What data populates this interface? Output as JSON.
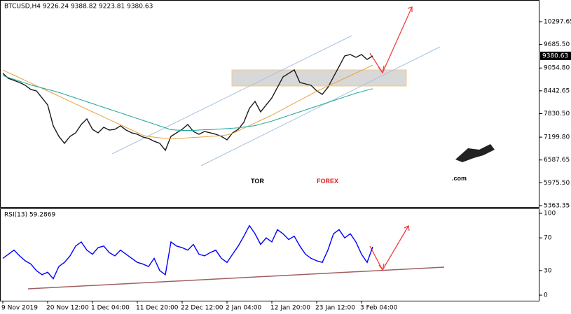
{
  "chart_data": [
    {
      "type": "line",
      "title": "BTCUSD,H4  9226.24 9388.82 9223.81 9380.63",
      "categories": [
        "9 Nov 2019",
        null,
        null,
        null,
        null,
        null,
        null,
        null,
        "20 Nov 12:00",
        null,
        null,
        null,
        null,
        null,
        null,
        null,
        "1 Dec 04:00",
        null,
        null,
        null,
        null,
        null,
        null,
        null,
        "11 Dec 20:00",
        null,
        null,
        null,
        null,
        null,
        null,
        null,
        "22 Dec 12:00",
        null,
        null,
        null,
        null,
        null,
        null,
        null,
        "2 Jan 04:00",
        null,
        null,
        null,
        null,
        null,
        null,
        null,
        "12 Jan 20:00",
        null,
        null,
        null,
        null,
        null,
        null,
        null,
        "23 Jan 12:00",
        null,
        null,
        null,
        null,
        null,
        null,
        null,
        "3 Feb 04:00",
        null,
        null
      ],
      "series": [
        {
          "color": "#1a1a1a",
          "values": [
            8910,
            8778,
            8722,
            8666,
            8591,
            8478,
            8441,
            8253,
            8066,
            7503,
            7221,
            7034,
            7221,
            7315,
            7540,
            7690,
            7409,
            7315,
            7465,
            7390,
            7409,
            7503,
            7390,
            7315,
            7278,
            7203,
            7165,
            7090,
            7034,
            6846,
            7221,
            7315,
            7409,
            7540,
            7353,
            7278,
            7353,
            7315,
            7278,
            7221,
            7128,
            7315,
            7409,
            7597,
            7972,
            8159,
            7878,
            8066,
            8253,
            8535,
            8816,
            8910,
            9004,
            8666,
            8628,
            8591,
            8441,
            8347,
            8535,
            8816,
            9097,
            9379,
            9416,
            9341,
            9416,
            9285,
            9380
          ]
        },
        {
          "color": "#e8a33c",
          "values": [
            9000,
            8930,
            8860,
            8790,
            8720,
            8650,
            8580,
            8510,
            8440,
            8370,
            8300,
            8230,
            8160,
            8090,
            8020,
            7950,
            7880,
            7810,
            7740,
            7670,
            7600,
            7530,
            7460,
            7390,
            7320,
            7250,
            7220,
            7200,
            7180,
            7170,
            7160,
            7160,
            7170,
            7180,
            7190,
            7200,
            7210,
            7220,
            7230,
            7240,
            7260,
            7300,
            7370,
            7440,
            7510,
            7580,
            7650,
            7720,
            7790,
            7870,
            7950,
            8030,
            8110,
            8190,
            8270,
            8350,
            8430,
            8500,
            8570,
            8640,
            8710,
            8780,
            8850,
            8920,
            8990,
            9060,
            9130
          ]
        },
        {
          "color": "#1aa59a",
          "values": [
            8850,
            8800,
            8750,
            8700,
            8650,
            8600,
            8560,
            8520,
            8480,
            8440,
            8400,
            8350,
            8300,
            8250,
            8200,
            8150,
            8100,
            8050,
            8000,
            7950,
            7900,
            7850,
            7800,
            7750,
            7700,
            7650,
            7600,
            7550,
            7500,
            7450,
            7400,
            7390,
            7380,
            7380,
            7380,
            7390,
            7400,
            7400,
            7410,
            7420,
            7430,
            7440,
            7450,
            7470,
            7490,
            7510,
            7550,
            7590,
            7630,
            7680,
            7730,
            7780,
            7830,
            7880,
            7930,
            7980,
            8030,
            8080,
            8130,
            8180,
            8230,
            8280,
            8330,
            8380,
            8420,
            8460,
            8500
          ]
        }
      ],
      "ylim": [
        5325.8,
        10841.7
      ],
      "yticks": [
        10297.65,
        {
          "value": 9685.5,
          "label": "9685.50"
        },
        {
          "value": 9054.8,
          "label": "9054.80"
        },
        8442.65,
        {
          "value": 7830.5,
          "label": "7830.50"
        },
        {
          "value": 7199.8,
          "label": "7199.80"
        },
        6587.65,
        {
          "value": 5975.5,
          "label": "5975.50"
        },
        5363.35
      ],
      "price_label": 9380.63,
      "grid": false,
      "watermark": {
        "prefix": "TOR",
        "brand": "FOREX",
        "suffix": ".com"
      }
    },
    {
      "type": "line",
      "title": "RSI(13) 59.2869",
      "series": [
        {
          "color": "#0000ff",
          "values": [
            45,
            50,
            55,
            48,
            42,
            38,
            30,
            25,
            28,
            20,
            35,
            40,
            48,
            60,
            65,
            55,
            50,
            58,
            60,
            52,
            48,
            55,
            50,
            45,
            40,
            38,
            35,
            45,
            30,
            25,
            65,
            60,
            58,
            55,
            62,
            50,
            48,
            52,
            55,
            45,
            40,
            50,
            60,
            72,
            85,
            75,
            62,
            70,
            65,
            80,
            75,
            68,
            72,
            60,
            50,
            45,
            42,
            40,
            55,
            75,
            80,
            70,
            75,
            65,
            50,
            40,
            59
          ]
        }
      ],
      "ylim": [
        -6.8,
        106
      ],
      "yticks": [
        100,
        70,
        30,
        0
      ],
      "grid": false
    }
  ]
}
